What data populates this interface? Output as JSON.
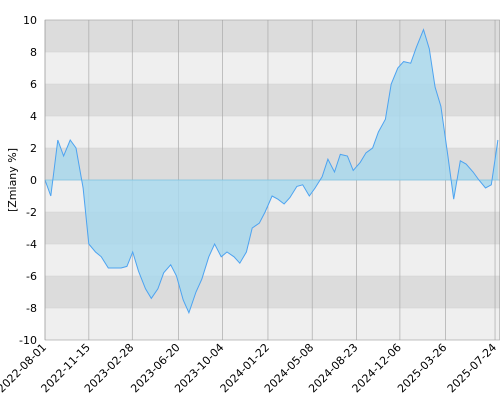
{
  "chart_data": {
    "type": "area",
    "y_label": "[Zmiany %]",
    "x": [
      "2022-08-01",
      "2022-08-15",
      "2022-09-01",
      "2022-09-15",
      "2022-10-01",
      "2022-10-15",
      "2022-11-01",
      "2022-11-15",
      "2022-12-01",
      "2022-12-15",
      "2023-01-01",
      "2023-01-15",
      "2023-02-01",
      "2023-02-15",
      "2023-03-01",
      "2023-03-15",
      "2023-04-01",
      "2023-04-15",
      "2023-05-01",
      "2023-05-15",
      "2023-06-01",
      "2023-06-15",
      "2023-07-01",
      "2023-07-15",
      "2023-08-01",
      "2023-08-15",
      "2023-09-01",
      "2023-09-15",
      "2023-10-01",
      "2023-10-15",
      "2023-11-01",
      "2023-11-15",
      "2023-12-01",
      "2023-12-15",
      "2024-01-01",
      "2024-01-15",
      "2024-02-01",
      "2024-02-15",
      "2024-03-01",
      "2024-03-15",
      "2024-04-01",
      "2024-04-15",
      "2024-05-01",
      "2024-05-15",
      "2024-06-01",
      "2024-06-15",
      "2024-07-01",
      "2024-07-15",
      "2024-08-01",
      "2024-08-15",
      "2024-09-01",
      "2024-09-15",
      "2024-10-01",
      "2024-10-15",
      "2024-11-01",
      "2024-11-15",
      "2024-12-01",
      "2024-12-15",
      "2025-01-01",
      "2025-01-15",
      "2025-02-01",
      "2025-02-15",
      "2025-03-01",
      "2025-03-15",
      "2025-04-01",
      "2025-04-15",
      "2025-05-01",
      "2025-05-15",
      "2025-06-01",
      "2025-06-15",
      "2025-07-01",
      "2025-07-15",
      "2025-07-31"
    ],
    "series": [
      {
        "color": "#4da3f0",
        "fill": "#a9d8ec",
        "values": [
          0,
          -1,
          2.5,
          1.5,
          2.5,
          2,
          -0.5,
          -4,
          -4.5,
          -4.8,
          -5.5,
          -5.5,
          -5.5,
          -5.4,
          -4.5,
          -5.7,
          -6.8,
          -7.4,
          -6.8,
          -5.8,
          -5.3,
          -6,
          -7.5,
          -8.3,
          -7,
          -6.2,
          -4.8,
          -4,
          -4.8,
          -4.5,
          -4.8,
          -5.2,
          -4.5,
          -3,
          -2.7,
          -2,
          -1,
          -1.2,
          -1.5,
          -1.1,
          -0.4,
          -0.3,
          -1,
          -0.5,
          0.2,
          1.3,
          0.5,
          1.6,
          1.5,
          0.6,
          1.1,
          1.7,
          2,
          3,
          3.8,
          6,
          7,
          7.4,
          7.3,
          8.3,
          9.4,
          8.2,
          5.8,
          4.6,
          1.5,
          -1.2,
          1.2,
          1,
          0.5,
          0,
          -0.5,
          -0.3,
          2.5
        ]
      }
    ],
    "xlim": [
      "2022-08-01",
      "2025-08-05"
    ],
    "xticks": [
      "2022-08-01",
      "2022-11-15",
      "2023-02-28",
      "2023-06-20",
      "2023-10-04",
      "2024-01-22",
      "2024-05-08",
      "2024-08-23",
      "2024-12-06",
      "2025-03-26",
      "2025-07-24"
    ],
    "ylim": [
      -10,
      10
    ],
    "yticks": [
      -10,
      -8,
      -6,
      -4,
      -2,
      0,
      2,
      4,
      6,
      8,
      10
    ],
    "grid": true
  }
}
